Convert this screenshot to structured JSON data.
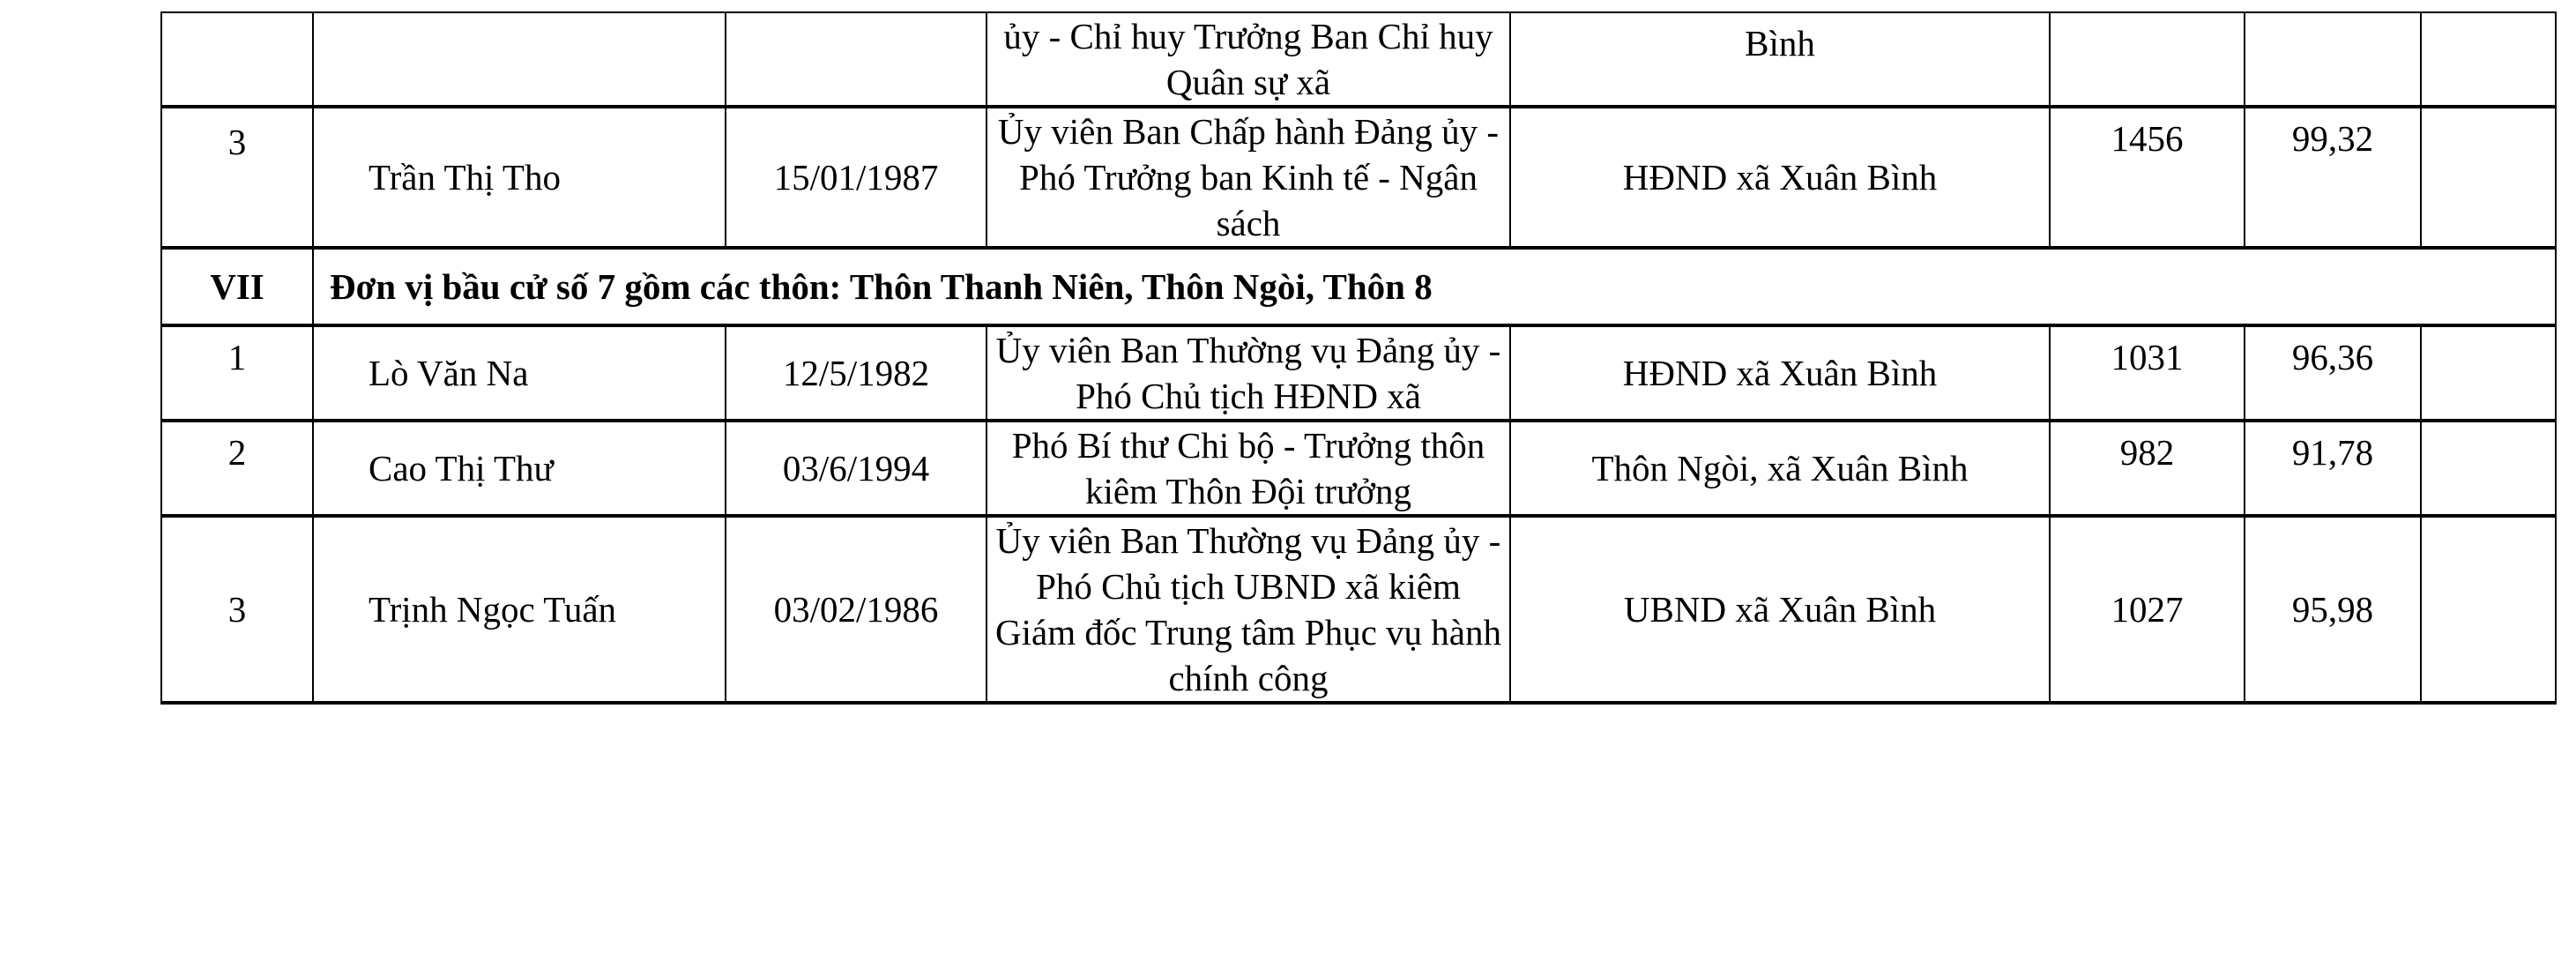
{
  "table": {
    "rows": [
      {
        "stt": "",
        "name": "",
        "dob": "",
        "position": "ủy - Chỉ huy Trưởng  Ban Chỉ huy Quân sự xã",
        "workplace": "Bình",
        "votes": "",
        "percent": ""
      },
      {
        "stt": "3",
        "name": "Trần Thị Tho",
        "dob": "15/01/1987",
        "position": "Ủy viên Ban Chấp hành Đảng ủy - Phó Trưởng ban Kinh tế - Ngân sách",
        "workplace": "HĐND xã Xuân Bình",
        "votes": "1456",
        "percent": "99,32"
      }
    ],
    "section": {
      "number": "VII",
      "title": "Đơn vị bầu cử số 7 gồm các thôn: Thôn Thanh Niên, Thôn Ngòi, Thôn 8"
    },
    "section_rows": [
      {
        "stt": "1",
        "name": "Lò Văn Na",
        "dob": "12/5/1982",
        "position": "Ủy viên Ban Thường vụ Đảng ủy - Phó Chủ tịch HĐND xã",
        "workplace": "HĐND xã Xuân Bình",
        "votes": "1031",
        "percent": "96,36"
      },
      {
        "stt": "2",
        "name": "Cao Thị Thư",
        "dob": "03/6/1994",
        "position": "Phó Bí thư Chi bộ - Trưởng thôn kiêm Thôn Đội trưởng",
        "workplace": "Thôn Ngòi, xã Xuân Bình",
        "votes": "982",
        "percent": "91,78"
      },
      {
        "stt": "3",
        "name": "Trịnh Ngọc Tuấn",
        "dob": "03/02/1986",
        "position": "Ủy viên Ban Thường vụ Đảng ủy - Phó Chủ tịch UBND xã kiêm Giám đốc Trung tâm Phục vụ hành chính công",
        "workplace": "UBND xã Xuân Bình",
        "votes": "1027",
        "percent": "95,98"
      }
    ]
  }
}
